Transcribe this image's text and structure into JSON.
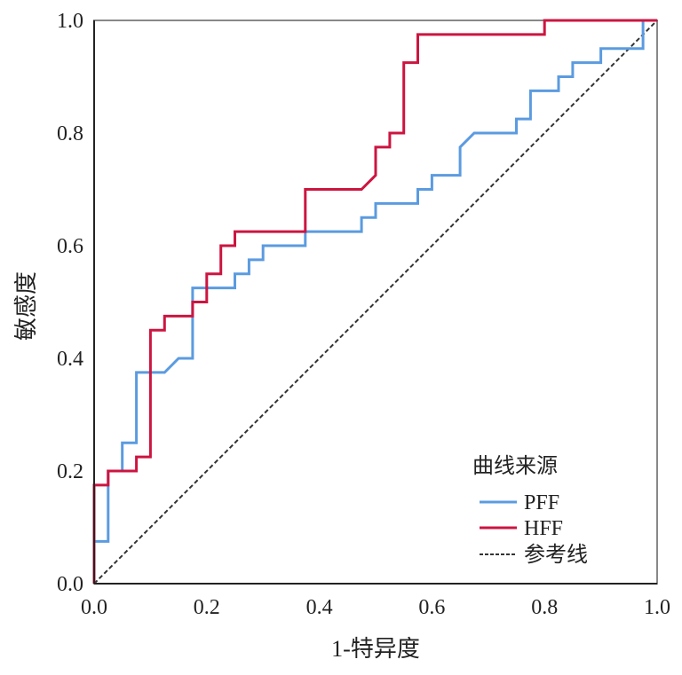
{
  "chart_data": {
    "type": "line",
    "title": "",
    "xlabel": "1-特异度",
    "ylabel": "敏感度",
    "xlim": [
      0,
      1
    ],
    "ylim": [
      0,
      1
    ],
    "x_ticks": [
      "0.0",
      "0.2",
      "0.4",
      "0.6",
      "0.8",
      "1.0"
    ],
    "y_ticks": [
      "0.0",
      "0.2",
      "0.4",
      "0.6",
      "0.8",
      "1.0"
    ],
    "grid": false,
    "legend": {
      "title": "曲线来源",
      "placement": "bottom-right"
    },
    "series": [
      {
        "name": "PFF",
        "color": "#5b9be0",
        "dash": false,
        "points": [
          [
            0,
            0
          ],
          [
            0,
            0.075
          ],
          [
            0.025,
            0.075
          ],
          [
            0.025,
            0.2
          ],
          [
            0.05,
            0.2
          ],
          [
            0.05,
            0.25
          ],
          [
            0.075,
            0.25
          ],
          [
            0.075,
            0.375
          ],
          [
            0.125,
            0.375
          ],
          [
            0.15,
            0.4
          ],
          [
            0.175,
            0.4
          ],
          [
            0.175,
            0.525
          ],
          [
            0.25,
            0.525
          ],
          [
            0.25,
            0.55
          ],
          [
            0.275,
            0.55
          ],
          [
            0.275,
            0.575
          ],
          [
            0.3,
            0.575
          ],
          [
            0.3,
            0.6
          ],
          [
            0.375,
            0.6
          ],
          [
            0.375,
            0.625
          ],
          [
            0.475,
            0.625
          ],
          [
            0.475,
            0.65
          ],
          [
            0.5,
            0.65
          ],
          [
            0.5,
            0.675
          ],
          [
            0.575,
            0.675
          ],
          [
            0.575,
            0.7
          ],
          [
            0.6,
            0.7
          ],
          [
            0.6,
            0.725
          ],
          [
            0.65,
            0.725
          ],
          [
            0.65,
            0.775
          ],
          [
            0.675,
            0.8
          ],
          [
            0.75,
            0.8
          ],
          [
            0.75,
            0.825
          ],
          [
            0.775,
            0.825
          ],
          [
            0.775,
            0.875
          ],
          [
            0.825,
            0.875
          ],
          [
            0.825,
            0.9
          ],
          [
            0.85,
            0.9
          ],
          [
            0.85,
            0.925
          ],
          [
            0.9,
            0.925
          ],
          [
            0.9,
            0.95
          ],
          [
            0.975,
            0.95
          ],
          [
            0.975,
            1
          ],
          [
            1,
            1
          ]
        ]
      },
      {
        "name": "HFF",
        "color": "#cc1540",
        "dash": false,
        "points": [
          [
            0,
            0
          ],
          [
            0,
            0.175
          ],
          [
            0.025,
            0.175
          ],
          [
            0.025,
            0.2
          ],
          [
            0.075,
            0.2
          ],
          [
            0.075,
            0.225
          ],
          [
            0.1,
            0.225
          ],
          [
            0.1,
            0.45
          ],
          [
            0.125,
            0.45
          ],
          [
            0.125,
            0.475
          ],
          [
            0.175,
            0.475
          ],
          [
            0.175,
            0.5
          ],
          [
            0.2,
            0.5
          ],
          [
            0.2,
            0.55
          ],
          [
            0.225,
            0.55
          ],
          [
            0.225,
            0.6
          ],
          [
            0.25,
            0.6
          ],
          [
            0.25,
            0.625
          ],
          [
            0.375,
            0.625
          ],
          [
            0.375,
            0.7
          ],
          [
            0.475,
            0.7
          ],
          [
            0.5,
            0.725
          ],
          [
            0.5,
            0.775
          ],
          [
            0.525,
            0.775
          ],
          [
            0.525,
            0.8
          ],
          [
            0.55,
            0.8
          ],
          [
            0.55,
            0.925
          ],
          [
            0.575,
            0.925
          ],
          [
            0.575,
            0.975
          ],
          [
            0.8,
            0.975
          ],
          [
            0.8,
            1
          ],
          [
            1,
            1
          ]
        ]
      },
      {
        "name": "参考线",
        "color": "#333333",
        "dash": true,
        "points": [
          [
            0,
            0
          ],
          [
            1,
            1
          ]
        ]
      }
    ]
  }
}
